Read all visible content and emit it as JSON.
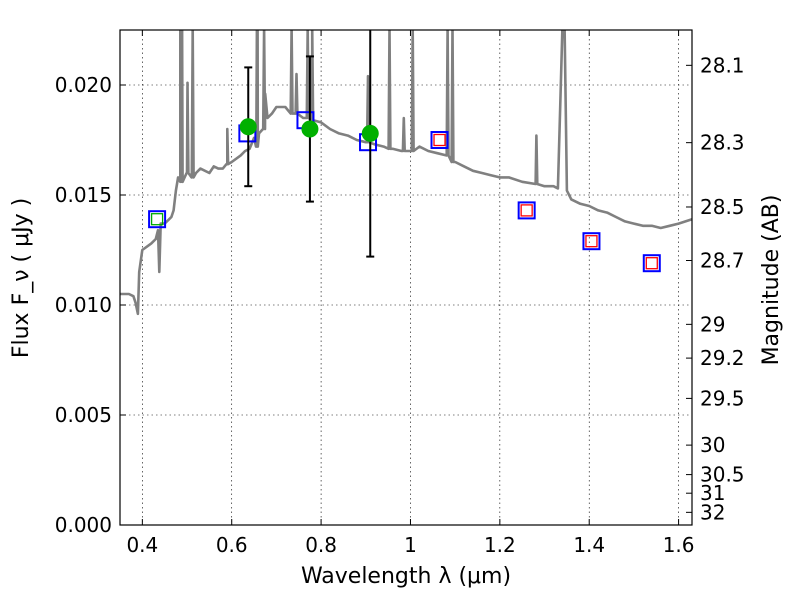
{
  "chart_data": {
    "type": "scatter",
    "xlabel": "Wavelength  λ (μm)",
    "ylabel": "Flux  F_ν  ( μJy )",
    "ylabel_right": "Magnitude (AB)",
    "xlim": [
      0.35,
      1.63
    ],
    "ylim": [
      0.0,
      0.0225
    ],
    "grid": true,
    "x_ticks": [
      0.4,
      0.6,
      0.8,
      1.0,
      1.2,
      1.4,
      1.6
    ],
    "x_tick_labels": [
      "0.4",
      "0.6",
      "0.8",
      "1",
      "1.2",
      "1.4",
      "1.6"
    ],
    "y_ticks": [
      0.0,
      0.005,
      0.01,
      0.015,
      0.02
    ],
    "y_tick_labels": [
      "0.000",
      "0.005",
      "0.010",
      "0.015",
      "0.020"
    ],
    "mag_ticks": [
      {
        "label": "28.1",
        "mag": 28.1
      },
      {
        "label": "28.3",
        "mag": 28.3
      },
      {
        "label": "28.5",
        "mag": 28.5
      },
      {
        "label": "28.7",
        "mag": 28.7
      },
      {
        "label": "29",
        "mag": 29.0
      },
      {
        "label": "29.2",
        "mag": 29.2
      },
      {
        "label": "29.5",
        "mag": 29.5
      },
      {
        "label": "30",
        "mag": 30.0
      },
      {
        "label": "30.5",
        "mag": 30.5
      },
      {
        "label": "31",
        "mag": 31.0
      },
      {
        "label": "32",
        "mag": 32.0
      }
    ],
    "spectrum": {
      "color": "#808080",
      "points": [
        [
          0.35,
          0.0105
        ],
        [
          0.37,
          0.0105
        ],
        [
          0.38,
          0.0104
        ],
        [
          0.385,
          0.0101
        ],
        [
          0.39,
          0.0096
        ],
        [
          0.393,
          0.0115
        ],
        [
          0.4,
          0.0125
        ],
        [
          0.42,
          0.0128
        ],
        [
          0.43,
          0.013
        ],
        [
          0.435,
          0.0134
        ],
        [
          0.438,
          0.0115
        ],
        [
          0.441,
          0.0137
        ],
        [
          0.45,
          0.0137
        ],
        [
          0.465,
          0.014
        ],
        [
          0.47,
          0.0143
        ],
        [
          0.475,
          0.0152
        ],
        [
          0.48,
          0.0158
        ],
        [
          0.485,
          0.0156
        ],
        [
          0.487,
          0.0226
        ],
        [
          0.489,
          0.0156
        ],
        [
          0.49,
          0.0156
        ],
        [
          0.5,
          0.016
        ],
        [
          0.51,
          0.0158
        ],
        [
          0.52,
          0.016
        ],
        [
          0.53,
          0.0162
        ],
        [
          0.55,
          0.016
        ],
        [
          0.56,
          0.0163
        ],
        [
          0.57,
          0.0162
        ],
        [
          0.58,
          0.0162
        ],
        [
          0.59,
          0.0164
        ],
        [
          0.6,
          0.0165
        ],
        [
          0.62,
          0.0168
        ],
        [
          0.63,
          0.017
        ],
        [
          0.64,
          0.0171
        ],
        [
          0.65,
          0.0176
        ],
        [
          0.655,
          0.0172
        ],
        [
          0.658,
          0.0226
        ],
        [
          0.661,
          0.0178
        ],
        [
          0.67,
          0.018
        ],
        [
          0.675,
          0.0196
        ],
        [
          0.68,
          0.0185
        ],
        [
          0.69,
          0.0187
        ],
        [
          0.7,
          0.019
        ],
        [
          0.72,
          0.019
        ],
        [
          0.74,
          0.0187
        ],
        [
          0.76,
          0.0185
        ],
        [
          0.78,
          0.0184
        ],
        [
          0.8,
          0.0183
        ],
        [
          0.82,
          0.018
        ],
        [
          0.84,
          0.0178
        ],
        [
          0.86,
          0.0177
        ],
        [
          0.88,
          0.0175
        ],
        [
          0.9,
          0.0174
        ],
        [
          0.92,
          0.0173
        ],
        [
          0.94,
          0.0172
        ],
        [
          0.96,
          0.0171
        ],
        [
          0.98,
          0.017
        ],
        [
          1.0,
          0.017
        ],
        [
          1.02,
          0.0172
        ],
        [
          1.04,
          0.017
        ],
        [
          1.06,
          0.0169
        ],
        [
          1.08,
          0.0168
        ],
        [
          1.1,
          0.0165
        ],
        [
          1.12,
          0.0163
        ],
        [
          1.14,
          0.0161
        ],
        [
          1.16,
          0.016
        ],
        [
          1.18,
          0.0159
        ],
        [
          1.2,
          0.0158
        ],
        [
          1.22,
          0.0158
        ],
        [
          1.25,
          0.0156
        ],
        [
          1.28,
          0.0155
        ],
        [
          1.3,
          0.0154
        ],
        [
          1.32,
          0.0154
        ],
        [
          1.33,
          0.0153
        ],
        [
          1.335,
          0.019
        ],
        [
          1.34,
          0.0226
        ],
        [
          1.345,
          0.0226
        ],
        [
          1.35,
          0.0152
        ],
        [
          1.36,
          0.0148
        ],
        [
          1.38,
          0.0146
        ],
        [
          1.4,
          0.0145
        ],
        [
          1.42,
          0.0143
        ],
        [
          1.44,
          0.0142
        ],
        [
          1.46,
          0.014
        ],
        [
          1.48,
          0.0138
        ],
        [
          1.5,
          0.0137
        ],
        [
          1.52,
          0.0136
        ],
        [
          1.54,
          0.0136
        ],
        [
          1.56,
          0.0135
        ],
        [
          1.58,
          0.0136
        ],
        [
          1.6,
          0.0137
        ],
        [
          1.63,
          0.0139
        ]
      ],
      "lines": [
        {
          "x": 0.487,
          "peak": 0.0226
        },
        {
          "x": 0.501,
          "peak": 0.0201
        },
        {
          "x": 0.5126,
          "peak": 0.0226
        },
        {
          "x": 0.59,
          "peak": 0.018
        },
        {
          "x": 0.6563,
          "peak": 0.0226
        },
        {
          "x": 0.6725,
          "peak": 0.0226
        },
        {
          "x": 0.734,
          "peak": 0.0226
        },
        {
          "x": 0.745,
          "peak": 0.0205
        },
        {
          "x": 0.77,
          "peak": 0.0226
        },
        {
          "x": 0.78,
          "peak": 0.0226
        },
        {
          "x": 0.905,
          "peak": 0.0204
        },
        {
          "x": 0.953,
          "peak": 0.0226
        },
        {
          "x": 0.985,
          "peak": 0.0185
        },
        {
          "x": 1.005,
          "peak": 0.0226
        },
        {
          "x": 1.083,
          "peak": 0.0226
        },
        {
          "x": 1.094,
          "peak": 0.0226
        },
        {
          "x": 1.2818,
          "peak": 0.0177
        }
      ]
    },
    "observed": {
      "color": "#00b000",
      "points": [
        {
          "x": 0.637,
          "y": 0.0181,
          "err": 0.0027
        },
        {
          "x": 0.775,
          "y": 0.018,
          "err": 0.0033
        },
        {
          "x": 0.91,
          "y": 0.0178,
          "err": 0.0056
        }
      ]
    },
    "model_squares": {
      "color": "#0000ff",
      "points": [
        {
          "x": 0.433,
          "y": 0.0139
        },
        {
          "x": 0.635,
          "y": 0.0178
        },
        {
          "x": 0.765,
          "y": 0.0184
        },
        {
          "x": 0.905,
          "y": 0.0174
        },
        {
          "x": 1.065,
          "y": 0.0175
        },
        {
          "x": 1.26,
          "y": 0.0143
        },
        {
          "x": 1.405,
          "y": 0.0129
        },
        {
          "x": 1.54,
          "y": 0.0119
        }
      ]
    },
    "inner_squares": [
      {
        "x": 0.433,
        "y": 0.0139,
        "color": "#00aa00"
      },
      {
        "x": 1.065,
        "y": 0.0175,
        "color": "#ff0000"
      },
      {
        "x": 1.26,
        "y": 0.0143,
        "color": "#ff0000"
      },
      {
        "x": 1.405,
        "y": 0.0129,
        "color": "#ff0000"
      },
      {
        "x": 1.54,
        "y": 0.0119,
        "color": "#ff0000"
      }
    ]
  }
}
